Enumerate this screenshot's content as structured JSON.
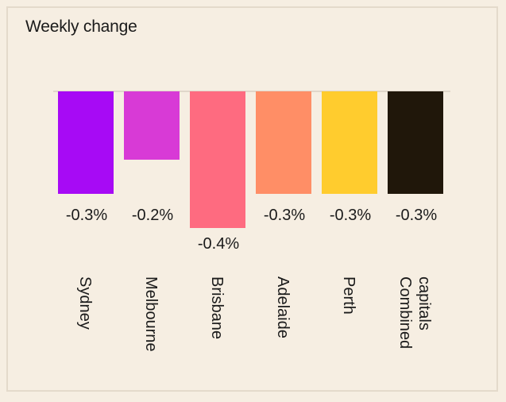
{
  "chart_data": {
    "type": "bar",
    "title": "Weekly change",
    "categories": [
      "Sydney",
      "Melbourne",
      "Brisbane",
      "Adelaide",
      "Perth",
      "Combined capitals"
    ],
    "values": [
      -0.3,
      -0.2,
      -0.4,
      -0.3,
      -0.3,
      -0.3
    ],
    "data_labels": [
      "-0.3%",
      "-0.2%",
      "-0.4%",
      "-0.3%",
      "-0.3%",
      "-0.3%"
    ],
    "category_label_lines": [
      [
        "Sydney"
      ],
      [
        "Melbourne"
      ],
      [
        "Brisbane"
      ],
      [
        "Adelaide"
      ],
      [
        "Perth"
      ],
      [
        "Combined",
        "capitals"
      ]
    ],
    "colors": [
      "#a70af5",
      "#d83ad6",
      "#fe6b80",
      "#ff8e66",
      "#ffcc2e",
      "#20170a"
    ],
    "ylim": [
      -0.4,
      0
    ],
    "grid": false,
    "legend": "none"
  },
  "colors": {
    "background": "#f6eee2",
    "border": "#e4dacb",
    "baseline": "#d8cfc1",
    "text": "#1a1a1a"
  }
}
